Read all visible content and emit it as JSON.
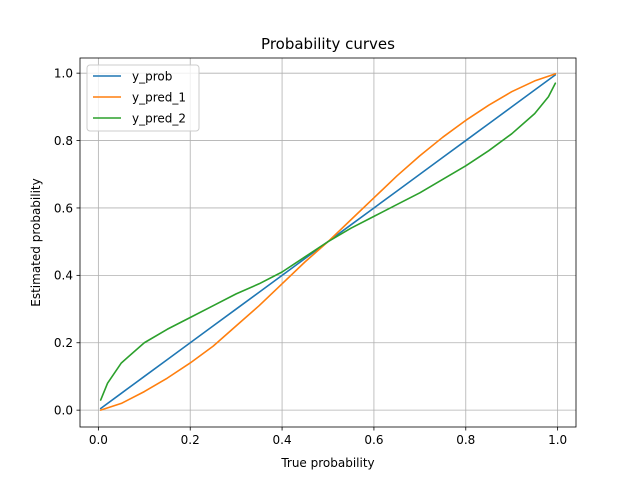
{
  "chart_data": {
    "type": "line",
    "title": "Probability curves",
    "xlabel": "True probability",
    "ylabel": "Estimated probability",
    "xlim": [
      -0.04,
      1.04
    ],
    "ylim": [
      -0.05,
      1.045
    ],
    "xticks": [
      0.0,
      0.2,
      0.4,
      0.6,
      0.8,
      1.0
    ],
    "xtick_labels": [
      "0.0",
      "0.2",
      "0.4",
      "0.6",
      "0.8",
      "1.0"
    ],
    "yticks": [
      0.0,
      0.2,
      0.4,
      0.6,
      0.8,
      1.0
    ],
    "ytick_labels": [
      "0.0",
      "0.2",
      "0.4",
      "0.6",
      "0.8",
      "1.0"
    ],
    "grid": true,
    "legend_position": "top-left",
    "series": [
      {
        "name": "y_prob",
        "color": "#1f77b4",
        "x": [
          0.005,
          0.05,
          0.1,
          0.15,
          0.2,
          0.25,
          0.3,
          0.35,
          0.4,
          0.45,
          0.5,
          0.55,
          0.6,
          0.65,
          0.7,
          0.75,
          0.8,
          0.85,
          0.9,
          0.95,
          0.995
        ],
        "y": [
          0.005,
          0.05,
          0.1,
          0.15,
          0.2,
          0.25,
          0.3,
          0.35,
          0.4,
          0.45,
          0.5,
          0.55,
          0.6,
          0.65,
          0.7,
          0.75,
          0.8,
          0.85,
          0.9,
          0.95,
          0.995
        ]
      },
      {
        "name": "y_pred_1",
        "color": "#ff7f0e",
        "x": [
          0.005,
          0.05,
          0.1,
          0.15,
          0.2,
          0.25,
          0.3,
          0.35,
          0.4,
          0.45,
          0.5,
          0.55,
          0.6,
          0.65,
          0.7,
          0.75,
          0.8,
          0.85,
          0.9,
          0.95,
          0.995
        ],
        "y": [
          0.0,
          0.02,
          0.055,
          0.095,
          0.14,
          0.19,
          0.25,
          0.31,
          0.375,
          0.44,
          0.5,
          0.565,
          0.63,
          0.695,
          0.755,
          0.81,
          0.86,
          0.905,
          0.945,
          0.977,
          0.998
        ]
      },
      {
        "name": "y_pred_2",
        "color": "#2ca02c",
        "x": [
          0.005,
          0.02,
          0.05,
          0.1,
          0.15,
          0.2,
          0.25,
          0.3,
          0.35,
          0.4,
          0.45,
          0.5,
          0.55,
          0.6,
          0.65,
          0.7,
          0.75,
          0.8,
          0.85,
          0.9,
          0.95,
          0.98,
          0.995
        ],
        "y": [
          0.03,
          0.08,
          0.14,
          0.2,
          0.24,
          0.275,
          0.31,
          0.345,
          0.375,
          0.41,
          0.455,
          0.5,
          0.54,
          0.575,
          0.61,
          0.645,
          0.685,
          0.725,
          0.77,
          0.82,
          0.88,
          0.93,
          0.97
        ]
      }
    ]
  }
}
